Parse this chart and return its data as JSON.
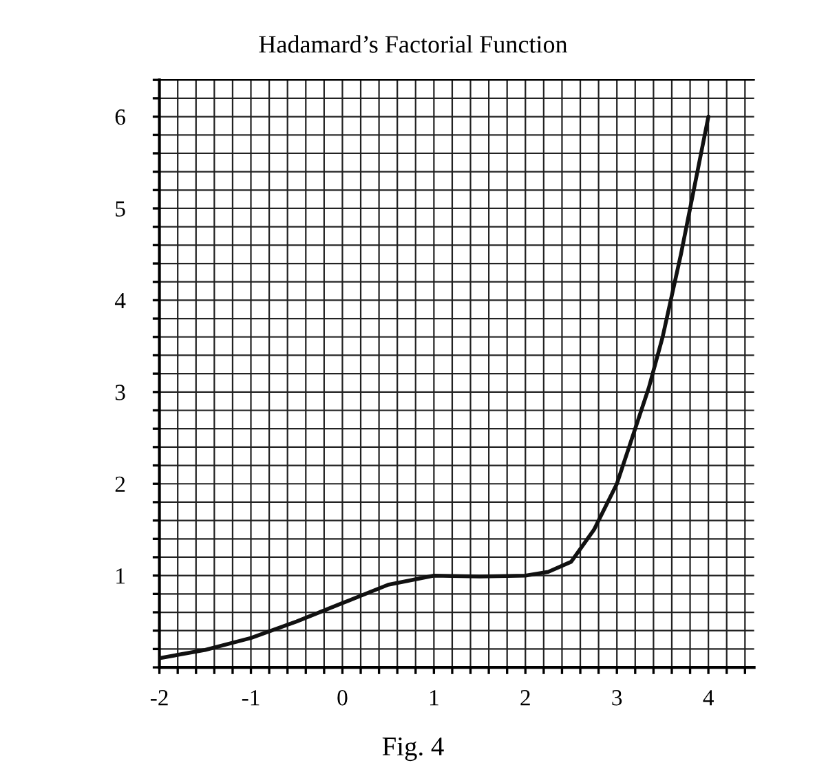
{
  "chart_data": {
    "type": "line",
    "title": "Hadamard’s Factorial Function",
    "annotations": [
      "Fig. 4"
    ],
    "series": [
      {
        "color": "#111111",
        "x": [
          -2,
          -1.5,
          -1,
          -0.5,
          0,
          0.5,
          1,
          1.5,
          2,
          2.25,
          2.5,
          2.75,
          3,
          3.2,
          3.35,
          3.5,
          3.6,
          3.7,
          3.8,
          3.9,
          4.0
        ],
        "values": [
          0.1,
          0.19,
          0.32,
          0.5,
          0.7,
          0.9,
          1.0,
          0.99,
          1.0,
          1.04,
          1.15,
          1.5,
          2.0,
          2.6,
          3.05,
          3.6,
          4.05,
          4.5,
          5.0,
          5.5,
          6.0
        ]
      }
    ],
    "xlim": [
      -2,
      4.5
    ],
    "ylim": [
      0,
      6.4
    ],
    "xticks": [
      -2,
      {
        "value": -1.8,
        "label": null
      },
      {
        "value": -1.6,
        "label": null
      },
      {
        "value": -1.4,
        "label": null
      },
      {
        "value": -1.2,
        "label": null
      },
      -1,
      {
        "value": -0.8,
        "label": null
      },
      {
        "value": -0.6,
        "label": null
      },
      {
        "value": -0.4,
        "label": null
      },
      {
        "value": -0.2,
        "label": null
      },
      0,
      {
        "value": 0.2,
        "label": null
      },
      {
        "value": 0.4,
        "label": null
      },
      {
        "value": 0.6,
        "label": null
      },
      {
        "value": 0.8,
        "label": null
      },
      1,
      {
        "value": 1.2,
        "label": null
      },
      {
        "value": 1.4,
        "label": null
      },
      {
        "value": 1.6,
        "label": null
      },
      {
        "value": 1.8,
        "label": null
      },
      2,
      {
        "value": 2.2,
        "label": null
      },
      {
        "value": 2.4,
        "label": null
      },
      {
        "value": 2.6,
        "label": null
      },
      {
        "value": 2.8,
        "label": null
      },
      3,
      {
        "value": 3.2,
        "label": null
      },
      {
        "value": 3.4,
        "label": null
      },
      {
        "value": 3.6,
        "label": null
      },
      {
        "value": 3.8,
        "label": null
      },
      4,
      {
        "value": 4.2,
        "label": null
      },
      {
        "value": 4.4,
        "label": null
      }
    ],
    "yticks": [
      {
        "value": 0,
        "label": null
      },
      {
        "value": 0.2,
        "label": null
      },
      {
        "value": 0.4,
        "label": null
      },
      {
        "value": 0.6,
        "label": null
      },
      {
        "value": 0.8,
        "label": null
      },
      1,
      {
        "value": 1.2,
        "label": null
      },
      {
        "value": 1.4,
        "label": null
      },
      {
        "value": 1.6,
        "label": null
      },
      {
        "value": 1.8,
        "label": null
      },
      2,
      {
        "value": 2.2,
        "label": null
      },
      {
        "value": 2.4,
        "label": null
      },
      {
        "value": 2.6,
        "label": null
      },
      {
        "value": 2.8,
        "label": null
      },
      3,
      {
        "value": 3.2,
        "label": null
      },
      {
        "value": 3.4,
        "label": null
      },
      {
        "value": 3.6,
        "label": null
      },
      {
        "value": 3.8,
        "label": null
      },
      4,
      {
        "value": 4.2,
        "label": null
      },
      {
        "value": 4.4,
        "label": null
      },
      {
        "value": 4.6,
        "label": null
      },
      {
        "value": 4.8,
        "label": null
      },
      5,
      {
        "value": 5.2,
        "label": null
      },
      {
        "value": 5.4,
        "label": null
      },
      {
        "value": 5.6,
        "label": null
      },
      {
        "value": 5.8,
        "label": null
      },
      6,
      {
        "value": 6.2,
        "label": null
      },
      {
        "value": 6.4,
        "label": null
      }
    ],
    "grid": true,
    "marker": "none",
    "line_style": "solid"
  }
}
